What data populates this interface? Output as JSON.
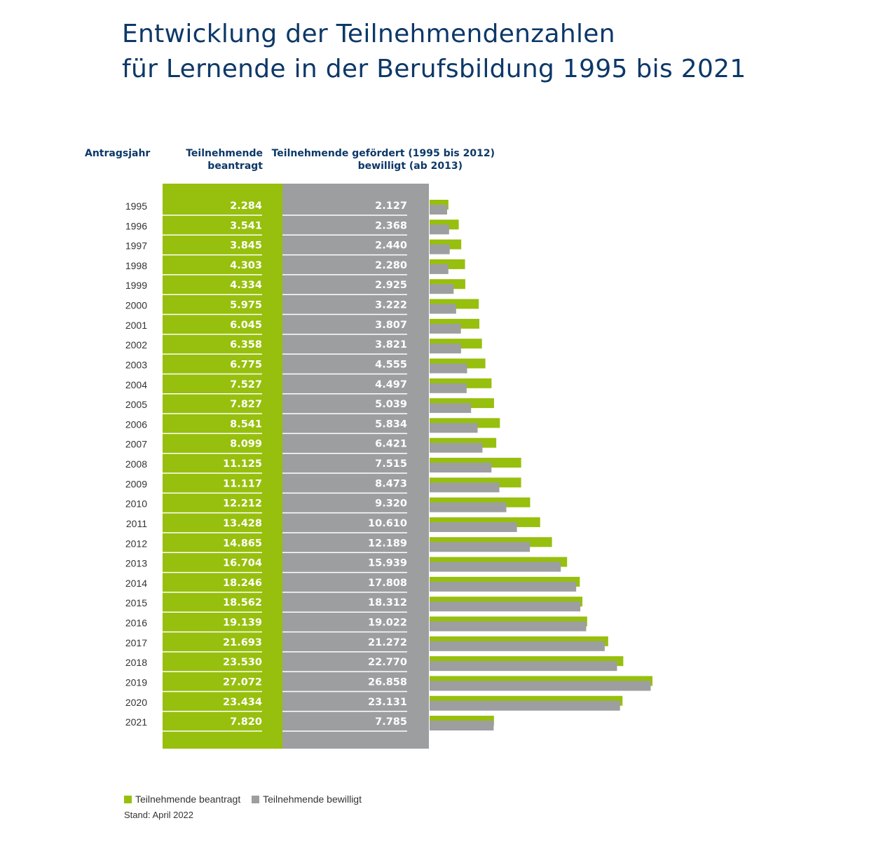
{
  "title_line1": "Entwicklung der Teilnehmendenzahlen",
  "title_line2": "für Lernende in der Berufsbildung 1995 bis 2021",
  "chart_data": {
    "type": "bar",
    "orientation": "horizontal",
    "title": "Entwicklung der Teilnehmendenzahlen für Lernende in der Berufsbildung 1995 bis 2021",
    "column_headers": {
      "year": "Antragsjahr",
      "applied_line1": "Teilnehmende",
      "applied_line2": "beantragt",
      "granted_line1": "Teilnehmende gefördert (1995 bis 2012)",
      "granted_line2": "bewilligt (ab 2013)"
    },
    "categories": [
      "1995",
      "1996",
      "1997",
      "1998",
      "1999",
      "2000",
      "2001",
      "2002",
      "2003",
      "2004",
      "2005",
      "2006",
      "2007",
      "2008",
      "2009",
      "2010",
      "2011",
      "2012",
      "2013",
      "2014",
      "2015",
      "2016",
      "2017",
      "2018",
      "2019",
      "2020",
      "2021"
    ],
    "series": [
      {
        "name": "Teilnehmende beantragt",
        "color": "#97bf0d",
        "values": [
          2284,
          3541,
          3845,
          4303,
          4334,
          5975,
          6045,
          6358,
          6775,
          7527,
          7827,
          8541,
          8099,
          11125,
          11117,
          12212,
          13428,
          14865,
          16704,
          18246,
          18562,
          19139,
          21693,
          23530,
          27072,
          23434,
          7820
        ],
        "labels": [
          "2.284",
          "3.541",
          "3.845",
          "4.303",
          "4.334",
          "5.975",
          "6.045",
          "6.358",
          "6.775",
          "7.527",
          "7.827",
          "8.541",
          "8.099",
          "11.125",
          "11.117",
          "12.212",
          "13.428",
          "14.865",
          "16.704",
          "18.246",
          "18.562",
          "19.139",
          "21.693",
          "23.530",
          "27.072",
          "23.434",
          "7.820"
        ]
      },
      {
        "name": "Teilnehmende bewilligt",
        "color": "#9d9ea0",
        "values": [
          2127,
          2368,
          2440,
          2280,
          2925,
          3222,
          3807,
          3821,
          4555,
          4497,
          5039,
          5834,
          6421,
          7515,
          8473,
          9320,
          10610,
          12189,
          15939,
          17808,
          18312,
          19022,
          21272,
          22770,
          26858,
          23131,
          7785
        ],
        "labels": [
          "2.127",
          "2.368",
          "2.440",
          "2.280",
          "2.925",
          "3.222",
          "3.807",
          "3.821",
          "4.555",
          "4.497",
          "5.039",
          "5.834",
          "6.421",
          "7.515",
          "8.473",
          "9.320",
          "10.610",
          "12.189",
          "15.939",
          "17.808",
          "18.312",
          "19.022",
          "21.272",
          "22.770",
          "26.858",
          "23.131",
          "7.785"
        ]
      }
    ],
    "xlim": [
      0,
      27072
    ],
    "grid": false,
    "legend_position": "bottom-left",
    "note": "Stand: April 2022"
  }
}
